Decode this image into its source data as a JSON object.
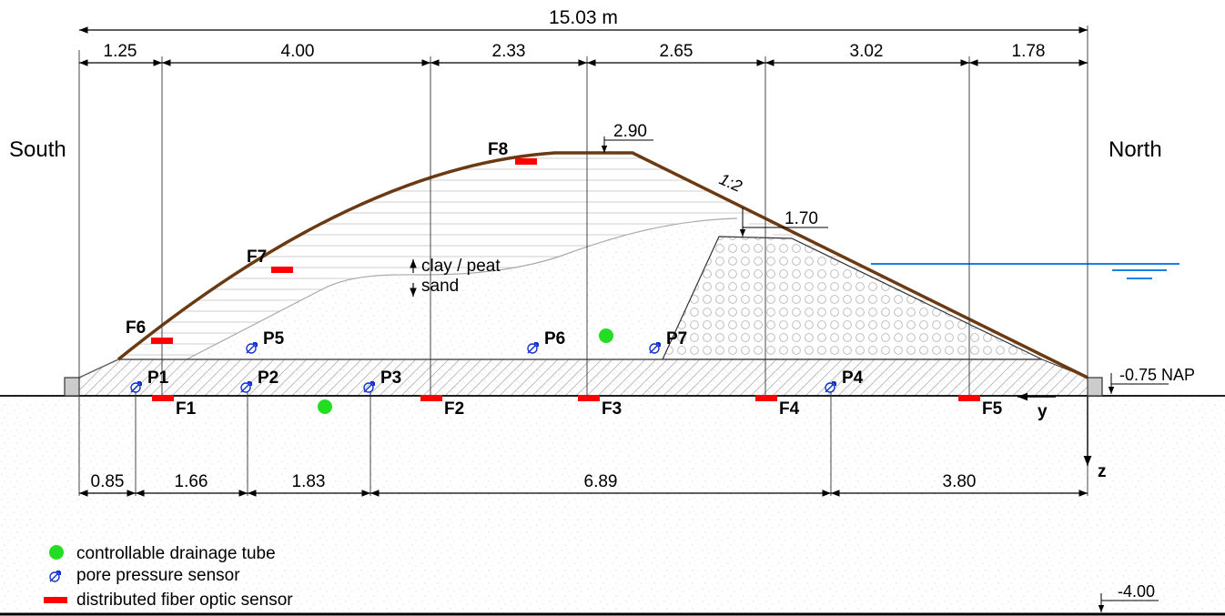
{
  "diagram": {
    "total_width": "15.03 m",
    "top_dims": [
      "1.25",
      "4.00",
      "2.33",
      "2.65",
      "3.02",
      "1.78"
    ],
    "bottom_dims": [
      "0.85",
      "1.66",
      "1.83",
      "6.89",
      "3.80"
    ],
    "side_labels": {
      "left": "South",
      "right": "North"
    },
    "levels": {
      "crest": "2.90",
      "berm": "1.70",
      "ground": "-0.75 NAP",
      "bottom": "-4.00"
    },
    "slope": "1:2",
    "layer_labels": {
      "upper": "clay / peat",
      "lower": "sand"
    },
    "axes": {
      "y": "y",
      "z": "z"
    },
    "fiber_sensors": [
      "F1",
      "F2",
      "F3",
      "F4",
      "F5",
      "F6",
      "F7",
      "F8"
    ],
    "pore_sensors": [
      "P1",
      "P2",
      "P3",
      "P4",
      "P5",
      "P6",
      "P7"
    ],
    "legend": {
      "drainage": "controllable drainage tube",
      "pore": "pore pressure sensor",
      "fiber": "distributed fiber optic sensor"
    },
    "colors": {
      "fiber": "#ff0000",
      "drainage": "#22dd22",
      "pore": "#1133cc",
      "water": "#1a7fe6",
      "dike_surface": "#6b3a12"
    }
  }
}
